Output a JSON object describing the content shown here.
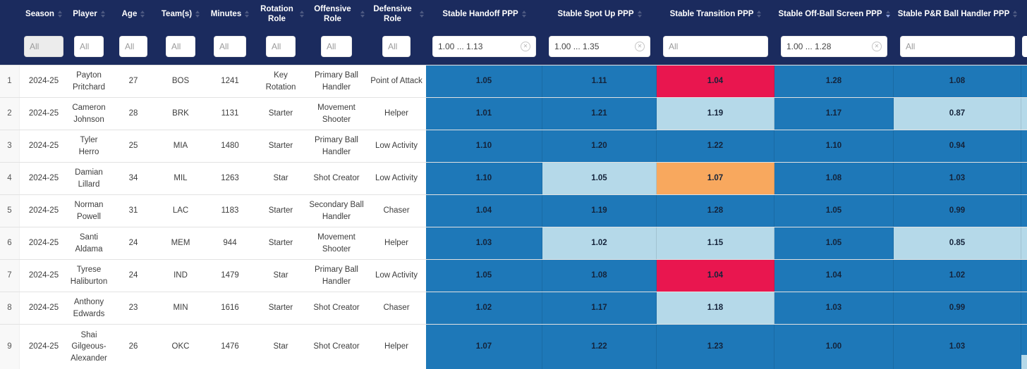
{
  "colors": {
    "header_bg": "#1b2b5e",
    "cell_blue": "#1e78b8",
    "cell_light_blue": "#b5d9e9",
    "cell_red": "#e9164f",
    "cell_orange": "#f8a85e"
  },
  "table": {
    "row_number_header": "",
    "columns": [
      {
        "id": "season",
        "label": "Season",
        "filter_value": "",
        "filter_placeholder": "All",
        "clearable": false,
        "sort": null
      },
      {
        "id": "player",
        "label": "Player",
        "filter_value": "",
        "filter_placeholder": "All",
        "clearable": false,
        "sort": null
      },
      {
        "id": "age",
        "label": "Age",
        "filter_value": "",
        "filter_placeholder": "All",
        "clearable": false,
        "sort": null
      },
      {
        "id": "teams",
        "label": "Team(s)",
        "filter_value": "",
        "filter_placeholder": "All",
        "clearable": false,
        "sort": null
      },
      {
        "id": "minutes",
        "label": "Minutes",
        "filter_value": "",
        "filter_placeholder": "All",
        "clearable": false,
        "sort": null
      },
      {
        "id": "rotation_role",
        "label": "Rotation Role",
        "filter_value": "",
        "filter_placeholder": "All",
        "clearable": false,
        "sort": null
      },
      {
        "id": "offensive_role",
        "label": "Offensive Role",
        "filter_value": "",
        "filter_placeholder": "All",
        "clearable": false,
        "sort": null
      },
      {
        "id": "defensive_role",
        "label": "Defensive Role",
        "filter_value": "",
        "filter_placeholder": "All",
        "clearable": false,
        "sort": null
      },
      {
        "id": "stable_handoff_ppp",
        "label": "Stable Handoff PPP",
        "filter_value": "1.00 ... 1.13",
        "filter_placeholder": "All",
        "clearable": true,
        "sort": null
      },
      {
        "id": "stable_spot_up_ppp",
        "label": "Stable Spot Up PPP",
        "filter_value": "1.00 ... 1.35",
        "filter_placeholder": "All",
        "clearable": true,
        "sort": null
      },
      {
        "id": "stable_transition_ppp",
        "label": "Stable Transition PPP",
        "filter_value": "",
        "filter_placeholder": "All",
        "clearable": false,
        "sort": null
      },
      {
        "id": "stable_off_ball_screen_ppp",
        "label": "Stable Off-Ball Screen PPP",
        "filter_value": "1.00 ... 1.28",
        "filter_placeholder": "All",
        "clearable": true,
        "sort": "desc"
      },
      {
        "id": "stable_pnr_ball_handler_ppp",
        "label": "Stable P&R Ball Handler PPP",
        "filter_value": "",
        "filter_placeholder": "All",
        "clearable": false,
        "sort": null
      }
    ],
    "rows": [
      {
        "num": "1",
        "season": "2024-25",
        "player": "Payton Pritchard",
        "age": "27",
        "teams": "BOS",
        "minutes": "1241",
        "rotation_role": "Key Rotation",
        "offensive_role": "Primary Ball Handler",
        "defensive_role": "Point of Attack",
        "ppp": [
          {
            "v": "1.05",
            "bg": "blue"
          },
          {
            "v": "1.11",
            "bg": "blue"
          },
          {
            "v": "1.04",
            "bg": "red"
          },
          {
            "v": "1.28",
            "bg": "blue"
          },
          {
            "v": "1.08",
            "bg": "blue"
          }
        ]
      },
      {
        "num": "2",
        "season": "2024-25",
        "player": "Cameron Johnson",
        "age": "28",
        "teams": "BRK",
        "minutes": "1131",
        "rotation_role": "Starter",
        "offensive_role": "Movement Shooter",
        "defensive_role": "Helper",
        "ppp": [
          {
            "v": "1.01",
            "bg": "blue"
          },
          {
            "v": "1.21",
            "bg": "blue"
          },
          {
            "v": "1.19",
            "bg": "light_blue"
          },
          {
            "v": "1.17",
            "bg": "blue"
          },
          {
            "v": "0.87",
            "bg": "light_blue"
          }
        ]
      },
      {
        "num": "3",
        "season": "2024-25",
        "player": "Tyler Herro",
        "age": "25",
        "teams": "MIA",
        "minutes": "1480",
        "rotation_role": "Starter",
        "offensive_role": "Primary Ball Handler",
        "defensive_role": "Low Activity",
        "ppp": [
          {
            "v": "1.10",
            "bg": "blue"
          },
          {
            "v": "1.20",
            "bg": "blue"
          },
          {
            "v": "1.22",
            "bg": "blue"
          },
          {
            "v": "1.10",
            "bg": "blue"
          },
          {
            "v": "0.94",
            "bg": "blue"
          }
        ]
      },
      {
        "num": "4",
        "season": "2024-25",
        "player": "Damian Lillard",
        "age": "34",
        "teams": "MIL",
        "minutes": "1263",
        "rotation_role": "Star",
        "offensive_role": "Shot Creator",
        "defensive_role": "Low Activity",
        "ppp": [
          {
            "v": "1.10",
            "bg": "blue"
          },
          {
            "v": "1.05",
            "bg": "light_blue"
          },
          {
            "v": "1.07",
            "bg": "orange"
          },
          {
            "v": "1.08",
            "bg": "blue"
          },
          {
            "v": "1.03",
            "bg": "blue"
          }
        ]
      },
      {
        "num": "5",
        "season": "2024-25",
        "player": "Norman Powell",
        "age": "31",
        "teams": "LAC",
        "minutes": "1183",
        "rotation_role": "Starter",
        "offensive_role": "Secondary Ball Handler",
        "defensive_role": "Chaser",
        "ppp": [
          {
            "v": "1.04",
            "bg": "blue"
          },
          {
            "v": "1.19",
            "bg": "blue"
          },
          {
            "v": "1.28",
            "bg": "blue"
          },
          {
            "v": "1.05",
            "bg": "blue"
          },
          {
            "v": "0.99",
            "bg": "blue"
          }
        ]
      },
      {
        "num": "6",
        "season": "2024-25",
        "player": "Santi Aldama",
        "age": "24",
        "teams": "MEM",
        "minutes": "944",
        "rotation_role": "Starter",
        "offensive_role": "Movement Shooter",
        "defensive_role": "Helper",
        "ppp": [
          {
            "v": "1.03",
            "bg": "blue"
          },
          {
            "v": "1.02",
            "bg": "light_blue"
          },
          {
            "v": "1.15",
            "bg": "light_blue"
          },
          {
            "v": "1.05",
            "bg": "blue"
          },
          {
            "v": "0.85",
            "bg": "light_blue"
          }
        ]
      },
      {
        "num": "7",
        "season": "2024-25",
        "player": "Tyrese Haliburton",
        "age": "24",
        "teams": "IND",
        "minutes": "1479",
        "rotation_role": "Star",
        "offensive_role": "Primary Ball Handler",
        "defensive_role": "Low Activity",
        "ppp": [
          {
            "v": "1.05",
            "bg": "blue"
          },
          {
            "v": "1.08",
            "bg": "blue"
          },
          {
            "v": "1.04",
            "bg": "red"
          },
          {
            "v": "1.04",
            "bg": "blue"
          },
          {
            "v": "1.02",
            "bg": "blue"
          }
        ]
      },
      {
        "num": "8",
        "season": "2024-25",
        "player": "Anthony Edwards",
        "age": "23",
        "teams": "MIN",
        "minutes": "1616",
        "rotation_role": "Starter",
        "offensive_role": "Shot Creator",
        "defensive_role": "Chaser",
        "ppp": [
          {
            "v": "1.02",
            "bg": "blue"
          },
          {
            "v": "1.17",
            "bg": "blue"
          },
          {
            "v": "1.18",
            "bg": "light_blue"
          },
          {
            "v": "1.03",
            "bg": "blue"
          },
          {
            "v": "0.99",
            "bg": "blue"
          }
        ]
      },
      {
        "num": "9",
        "season": "2024-25",
        "player": "Shai Gilgeous-Alexander",
        "age": "26",
        "teams": "OKC",
        "minutes": "1476",
        "rotation_role": "Star",
        "offensive_role": "Shot Creator",
        "defensive_role": "Helper",
        "ppp": [
          {
            "v": "1.07",
            "bg": "blue"
          },
          {
            "v": "1.22",
            "bg": "blue"
          },
          {
            "v": "1.23",
            "bg": "blue"
          },
          {
            "v": "1.00",
            "bg": "blue"
          },
          {
            "v": "1.03",
            "bg": "blue"
          }
        ]
      }
    ],
    "edge_strip": {
      "cells": [
        "blue",
        "light_blue",
        "blue",
        "blue",
        "blue",
        "light_blue",
        "blue",
        "blue",
        "blue"
      ],
      "bottom_corner": "light_blue"
    }
  }
}
